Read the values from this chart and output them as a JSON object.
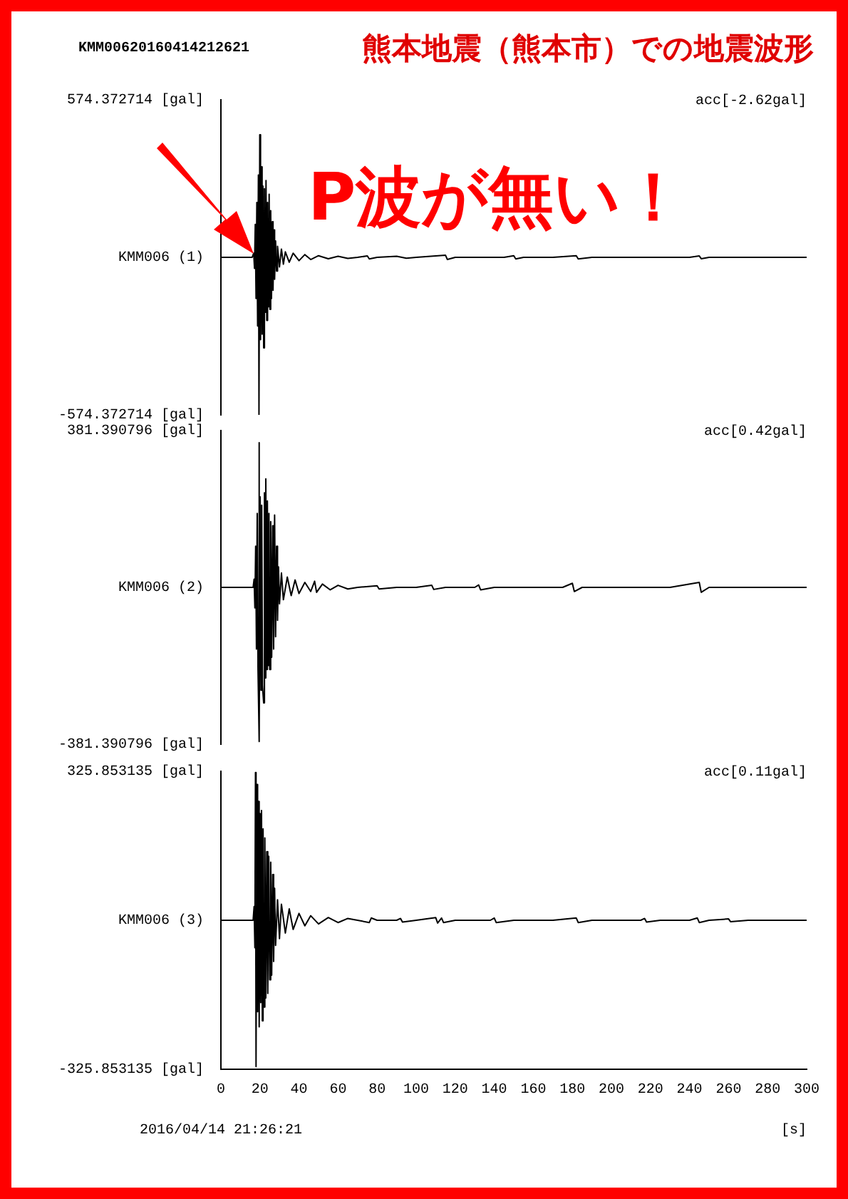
{
  "chart_data": [
    {
      "type": "line",
      "title": "熊本地震（熊本市）での地震波形",
      "subtitle": "KMM00620160414212621",
      "annotations": [
        "acc[-2.62gal]",
        "P波が無い！"
      ],
      "tick_labels": "y",
      "xlim": [
        0,
        300
      ],
      "ylim": [
        -574.372714,
        574.372714
      ],
      "yticks": [
        {
          "value": 574.372714,
          "label": "574.372714 [gal]"
        },
        {
          "value": 0,
          "label": "KMM006 (1)"
        },
        {
          "value": -574.372714,
          "label": "-574.372714 [gal]"
        }
      ],
      "series": [
        {
          "color": "#000000",
          "x": [
            0,
            10,
            16,
            16.8,
            17.2,
            17.6,
            18,
            18.4,
            18.8,
            19.2,
            19.5,
            19.9,
            20.3,
            20.7,
            21.1,
            21.5,
            21.9,
            22.3,
            22.7,
            23.1,
            23.5,
            23.9,
            24.3,
            24.7,
            25.1,
            25.5,
            25.9,
            26.3,
            26.7,
            27.1,
            27.5,
            28,
            28.5,
            29,
            30,
            31,
            32,
            33,
            35,
            37,
            40,
            43,
            46,
            50,
            55,
            60,
            65,
            70,
            75,
            76,
            80,
            90,
            95,
            100,
            115,
            116,
            120,
            145,
            150,
            151,
            155,
            170,
            182,
            183,
            190,
            240,
            245,
            246,
            250,
            300
          ],
          "values": [
            0,
            0,
            0,
            15,
            -40,
            120,
            -150,
            200,
            -250,
            300,
            -574,
            447,
            -300,
            330,
            -280,
            260,
            -330,
            250,
            -200,
            280,
            -230,
            200,
            -180,
            230,
            -190,
            170,
            -150,
            130,
            -120,
            100,
            -80,
            60,
            -50,
            40,
            -35,
            30,
            -25,
            20,
            -18,
            15,
            -12,
            10,
            -8,
            6,
            -5,
            4,
            -4,
            0,
            5,
            -6,
            0,
            4,
            -3,
            0,
            8,
            -8,
            0,
            0,
            6,
            -6,
            0,
            0,
            6,
            -6,
            0,
            0,
            5,
            -5,
            0,
            0
          ]
        }
      ]
    },
    {
      "type": "line",
      "annotations": [
        "acc[0.42gal]"
      ],
      "tick_labels": "y",
      "xlim": [
        0,
        300
      ],
      "ylim": [
        -381.390796,
        381.390796
      ],
      "yticks": [
        {
          "value": 381.390796,
          "label": "381.390796 [gal]"
        },
        {
          "value": 0,
          "label": "KMM006 (2)"
        },
        {
          "value": -381.390796,
          "label": "-381.390796 [gal]"
        }
      ],
      "series": [
        {
          "color": "#000000",
          "x": [
            0,
            10,
            16.5,
            17,
            17.4,
            17.8,
            18.2,
            18.6,
            19,
            19.5,
            19.7,
            20.1,
            20.5,
            20.9,
            21.3,
            21.9,
            22.3,
            22.7,
            23,
            23.4,
            23.8,
            24.2,
            24.6,
            25,
            25.5,
            26,
            26.5,
            27,
            27.5,
            28,
            28.5,
            29,
            29.5,
            30,
            31,
            32,
            34,
            36,
            38,
            40,
            43,
            46,
            48,
            49,
            52,
            56,
            60,
            65,
            70,
            80,
            81,
            90,
            100,
            108,
            109,
            115,
            130,
            132,
            133,
            140,
            175,
            180,
            181,
            185,
            230,
            245,
            246,
            250,
            300
          ],
          "values": [
            0,
            0,
            0,
            20,
            -50,
            100,
            -150,
            180,
            -200,
            352,
            -375,
            220,
            -250,
            200,
            -240,
            -281,
            230,
            -220,
            264,
            -200,
            210,
            -190,
            180,
            -200,
            160,
            -170,
            150,
            -150,
            176,
            -120,
            100,
            -80,
            50,
            -40,
            35,
            -30,
            25,
            -20,
            18,
            -15,
            12,
            -10,
            15,
            -12,
            8,
            -6,
            5,
            -4,
            0,
            4,
            -4,
            0,
            0,
            5,
            -5,
            0,
            0,
            6,
            -6,
            0,
            0,
            10,
            -10,
            0,
            0,
            12,
            -12,
            0,
            0
          ]
        }
      ]
    },
    {
      "type": "line",
      "annotations": [
        "acc[0.11gal]",
        "2016/04/14 21:26:21"
      ],
      "xlabel": "[s]",
      "xlim": [
        0,
        300
      ],
      "xticks": [
        0,
        20,
        40,
        60,
        80,
        100,
        120,
        140,
        160,
        180,
        200,
        220,
        240,
        260,
        280,
        300
      ],
      "ylim": [
        -325.853135,
        325.853135
      ],
      "yticks": [
        {
          "value": 325.853135,
          "label": "325.853135 [gal]"
        },
        {
          "value": 0,
          "label": "KMM006 (3)"
        },
        {
          "value": -325.853135,
          "label": "-325.853135 [gal]"
        }
      ],
      "series": [
        {
          "color": "#000000",
          "x": [
            0,
            10,
            16.5,
            17,
            17.4,
            17.7,
            18,
            18.4,
            18.8,
            19.2,
            19.6,
            20,
            20.4,
            20.8,
            21.2,
            21.6,
            22,
            22.5,
            23,
            23.5,
            24,
            24.5,
            25,
            25.5,
            26,
            26.5,
            27,
            27.5,
            28,
            29,
            30,
            31,
            33,
            35,
            37,
            40,
            43,
            46,
            50,
            55,
            60,
            65,
            70,
            76,
            77,
            80,
            90,
            92,
            93,
            100,
            110,
            111,
            113,
            114,
            120,
            138,
            140,
            141,
            150,
            170,
            182,
            183,
            190,
            215,
            217,
            218,
            225,
            240,
            244,
            245,
            250,
            260,
            261,
            270,
            300
          ],
          "values": [
            0,
            0,
            0,
            30,
            -60,
            323,
            -320,
            297,
            -200,
            260,
            -233,
            233,
            -180,
            240,
            -220,
            200,
            -190,
            180,
            -170,
            150,
            -160,
            140,
            -130,
            127,
            -120,
            100,
            -90,
            70,
            -55,
            45,
            -40,
            35,
            -28,
            25,
            -20,
            15,
            -12,
            10,
            -8,
            6,
            -5,
            4,
            0,
            -5,
            5,
            0,
            0,
            4,
            -4,
            0,
            6,
            -6,
            5,
            -5,
            0,
            0,
            5,
            -5,
            0,
            0,
            5,
            -5,
            0,
            0,
            4,
            -4,
            0,
            0,
            5,
            -5,
            0,
            3,
            -3,
            0,
            0
          ]
        }
      ]
    }
  ]
}
